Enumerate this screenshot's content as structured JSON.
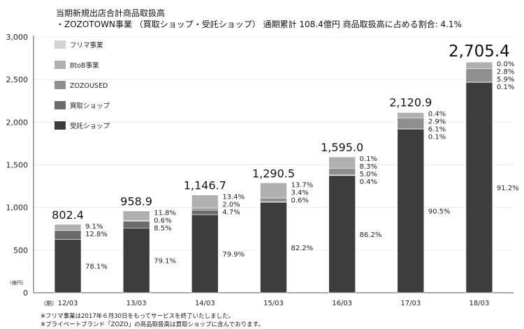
{
  "title": {
    "line1": "当期新規出店合計商品取扱高",
    "line2": "・ZOZOTOWN事業 （買取ショップ・受託ショップ） 通期累計 108.4億円 商品取扱高に占める割合: 4.1%"
  },
  "notes": [
    "※フリマ事業は2017年６月30日をもってサービスを終了いたしました。",
    "※プライベートブランド「ZOZO」の商品取扱高は買取ショップに含んでおります。"
  ],
  "chart_data": {
    "type": "bar",
    "stacked": true,
    "ylim": [
      0,
      3000
    ],
    "yticks": [
      0,
      500,
      1000,
      1500,
      2000,
      2500,
      3000
    ],
    "ytick_labels": [
      "0",
      "500",
      "1,000",
      "1,500",
      "2,000",
      "2,500",
      "3,000"
    ],
    "ylabel": "（億円）",
    "xlabel": "（期）",
    "categories": [
      "12/03",
      "13/03",
      "14/03",
      "15/03",
      "16/03",
      "17/03",
      "18/03"
    ],
    "totals": [
      802.4,
      958.9,
      1146.7,
      1290.5,
      1595.0,
      2120.9,
      2705.4
    ],
    "total_labels": [
      "802.4",
      "958.9",
      "1,146.7",
      "1,290.5",
      "1,595.0",
      "2,120.9",
      "2,705.4"
    ],
    "legend_position": "top-left",
    "series": [
      {
        "name": "受託ショップ",
        "color": "#3d3d3d",
        "share_labels": [
          "78.1%",
          "79.1%",
          "79.9%",
          "82.2%",
          "86.2%",
          "90.5%",
          "91.2%"
        ],
        "values": [
          626.7,
          758.5,
          916.2,
          1060.8,
          1374.9,
          1919.4,
          2467.3
        ]
      },
      {
        "name": "買取ショップ",
        "color": "#6b6b6b",
        "share_labels": [
          "12.8%",
          "8.5%",
          "4.7%",
          "0.6%",
          "0.4%",
          "0.1%",
          "0.1%"
        ],
        "values": [
          102.7,
          81.5,
          53.9,
          7.7,
          6.4,
          2.1,
          2.7
        ]
      },
      {
        "name": "ZOZOUSED",
        "color": "#8f8f8f",
        "share_labels": [
          "",
          "0.6%",
          "2.0%",
          "3.4%",
          "5.0%",
          "6.1%",
          "5.9%"
        ],
        "values": [
          0,
          5.8,
          22.9,
          43.9,
          79.8,
          129.4,
          159.6
        ]
      },
      {
        "name": "BtoB事業",
        "color": "#b0b0b0",
        "share_labels": [
          "9.1%",
          "11.8%",
          "13.4%",
          "13.7%",
          "8.3%",
          "2.9%",
          "2.8%"
        ],
        "values": [
          73.0,
          113.1,
          153.7,
          176.8,
          132.4,
          61.5,
          75.8
        ]
      },
      {
        "name": "フリマ事業",
        "color": "#d4d4d4",
        "share_labels": [
          "",
          "",
          "",
          "",
          "0.1%",
          "0.4%",
          "0.0%"
        ],
        "values": [
          0,
          0,
          0,
          0,
          1.6,
          8.5,
          0
        ]
      }
    ]
  }
}
